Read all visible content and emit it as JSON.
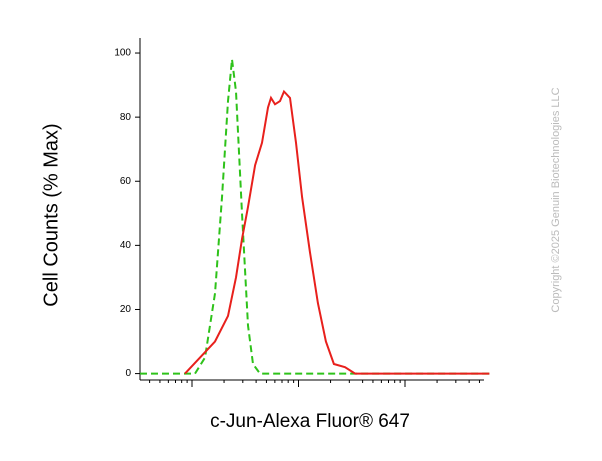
{
  "chart_data": {
    "type": "line",
    "y_label": "Cell Counts (% Max)",
    "x_label": "c-Jun-Alexa Fluor® 647",
    "watermark": "Copyright ©2025 Genuin Biotechnologies LLC",
    "x_log": true,
    "xlim": [
      325,
      628000
    ],
    "xticks": [
      1000,
      10000,
      100000
    ],
    "xticks_minor": [
      400,
      500,
      600,
      700,
      800,
      900,
      2000,
      3000,
      4000,
      5000,
      6000,
      7000,
      8000,
      9000,
      20000,
      30000,
      40000,
      50000,
      60000,
      70000,
      80000,
      90000,
      200000,
      300000,
      400000,
      500000
    ],
    "ylim": [
      -2,
      105
    ],
    "yticks": [
      0,
      20,
      40,
      60,
      80,
      100
    ],
    "series": [
      {
        "color": "#2ec21a",
        "dashed": true,
        "x": [
          325,
          1067,
          1325,
          1644,
          1914,
          2180,
          2375,
          2590,
          2945,
          3355,
          3740,
          4350,
          620000
        ],
        "values": [
          0,
          0,
          5,
          25,
          55,
          85,
          98,
          88,
          50,
          15,
          3,
          0,
          0
        ]
      },
      {
        "color": "#e8201c",
        "dashed": false,
        "x": [
          859,
          1189,
          1644,
          2180,
          2590,
          2945,
          3355,
          3910,
          4540,
          5170,
          5520,
          6020,
          6700,
          7310,
          8320,
          9480,
          10800,
          12800,
          15200,
          18100,
          21500,
          27300,
          34000,
          620000
        ],
        "values": [
          0,
          5,
          10,
          18,
          30,
          42,
          52,
          65,
          72,
          83,
          86,
          84,
          85,
          88,
          86,
          72,
          55,
          38,
          22,
          10,
          3,
          2,
          0,
          0
        ]
      }
    ]
  }
}
